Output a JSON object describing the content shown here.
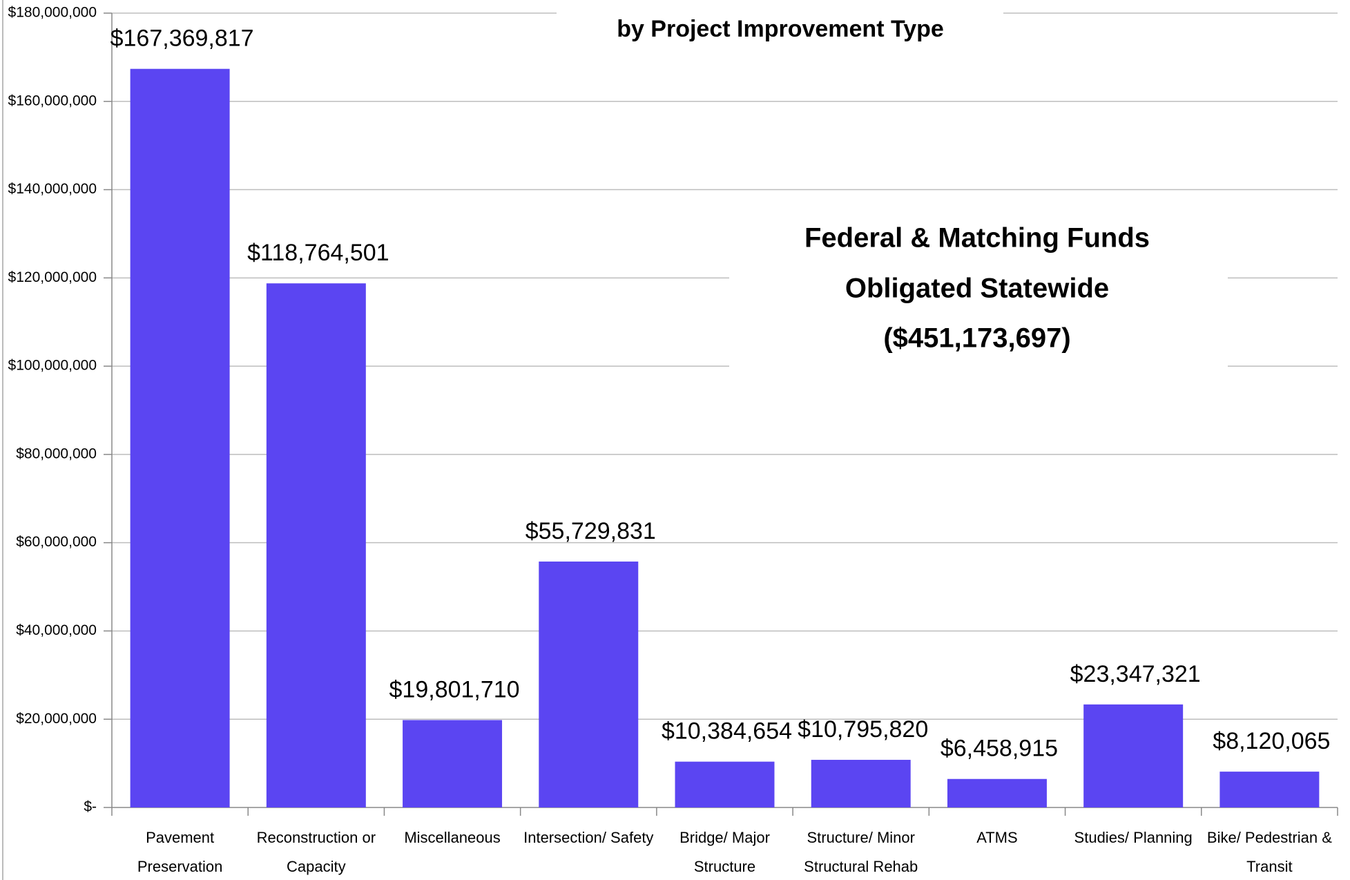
{
  "chart_data": {
    "type": "bar",
    "title": "by Project Improvement Type",
    "annotation": [
      "Federal & Matching Funds",
      "Obligated  Statewide",
      "($451,173,697)"
    ],
    "categories": [
      [
        "Pavement",
        "Preservation"
      ],
      [
        "Reconstruction or",
        "Capacity"
      ],
      [
        "Miscellaneous"
      ],
      [
        "Intersection/ Safety"
      ],
      [
        "Bridge/ Major",
        "Structure"
      ],
      [
        "Structure/ Minor",
        "Structural Rehab"
      ],
      [
        "ATMS"
      ],
      [
        "Studies/ Planning"
      ],
      [
        "Bike/ Pedestrian &",
        "Transit"
      ]
    ],
    "values": [
      167369817,
      118764501,
      19801710,
      55729831,
      10384654,
      10795820,
      6458915,
      23347321,
      8120065
    ],
    "value_labels": [
      "$167,369,817",
      "$118,764,501",
      "$19,801,710",
      "$55,729,831",
      "$10,384,654",
      "$10,795,820",
      "$6,458,915",
      "$23,347,321",
      "$8,120,065"
    ],
    "color": "#5b45f2",
    "ylim": [
      0,
      180000000
    ],
    "yticks": [
      {
        "value": 0,
        "label": "$-"
      },
      {
        "value": 20000000,
        "label": "$20,000,000"
      },
      {
        "value": 40000000,
        "label": "$40,000,000"
      },
      {
        "value": 60000000,
        "label": "$60,000,000"
      },
      {
        "value": 80000000,
        "label": "$80,000,000"
      },
      {
        "value": 100000000,
        "label": "$100,000,000"
      },
      {
        "value": 120000000,
        "label": "$120,000,000"
      },
      {
        "value": 140000000,
        "label": "$140,000,000"
      },
      {
        "value": 160000000,
        "label": "$160,000,000"
      },
      {
        "value": 180000000,
        "label": "$180,000,000"
      }
    ],
    "grid": true
  }
}
